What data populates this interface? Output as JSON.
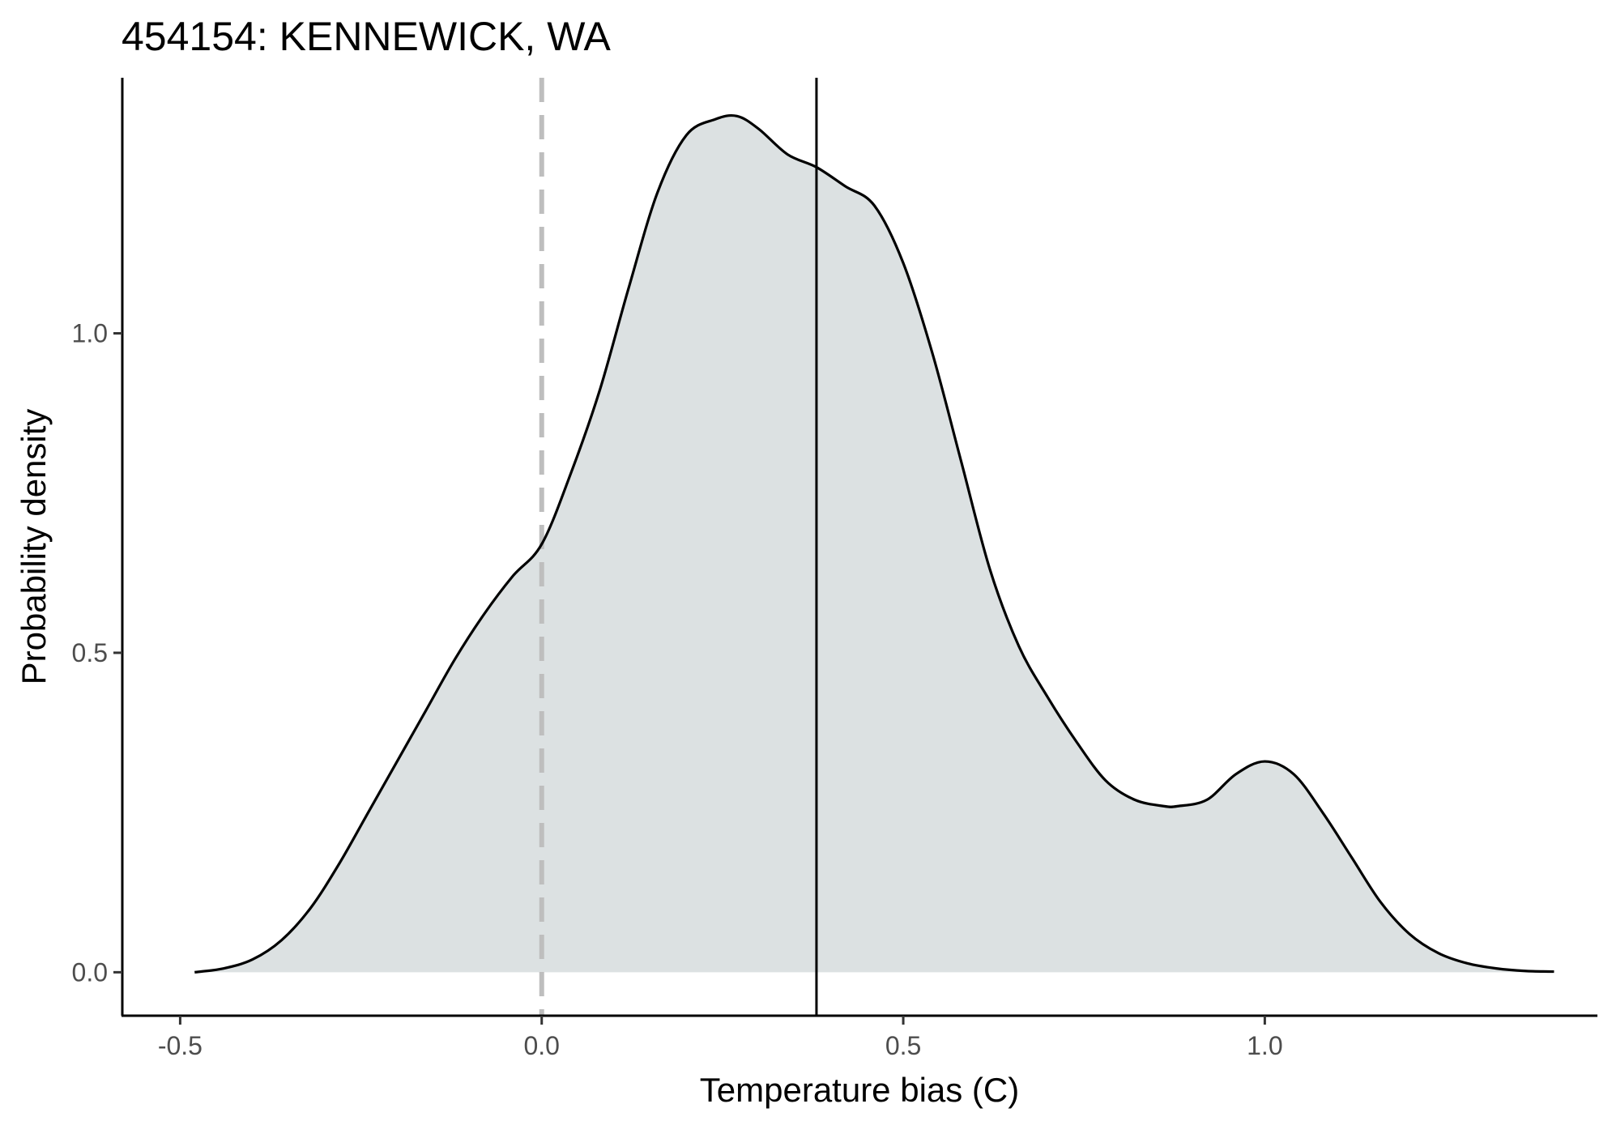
{
  "chart_data": {
    "type": "area",
    "title": "454154: KENNEWICK, WA",
    "xlabel": "Temperature bias (C)",
    "ylabel": "Probability density",
    "xlim": [
      -0.58,
      1.46
    ],
    "ylim": [
      -0.068,
      1.4
    ],
    "x_ticks": [
      {
        "value": -0.5,
        "label": "-0.5"
      },
      {
        "value": 0.0,
        "label": "0.0"
      },
      {
        "value": 0.5,
        "label": "0.5"
      },
      {
        "value": 1.0,
        "label": "1.0"
      }
    ],
    "y_ticks": [
      {
        "value": 0.0,
        "label": "0.0"
      },
      {
        "value": 0.5,
        "label": "0.5"
      },
      {
        "value": 1.0,
        "label": "1.0"
      }
    ],
    "reference_lines": [
      {
        "name": "zero-bias",
        "x": 0.0,
        "style": "dashed",
        "color": "#bebebe"
      },
      {
        "name": "mean-bias",
        "x": 0.38,
        "style": "solid",
        "color": "#000000"
      }
    ],
    "fill_color": "#dce1e2",
    "line_color": "#000000",
    "series": [
      {
        "name": "density",
        "x": [
          -0.48,
          -0.44,
          -0.4,
          -0.36,
          -0.32,
          -0.28,
          -0.24,
          -0.2,
          -0.16,
          -0.12,
          -0.08,
          -0.04,
          0.0,
          0.04,
          0.08,
          0.12,
          0.16,
          0.2,
          0.24,
          0.27,
          0.3,
          0.34,
          0.38,
          0.42,
          0.46,
          0.5,
          0.54,
          0.58,
          0.62,
          0.66,
          0.7,
          0.74,
          0.78,
          0.82,
          0.86,
          0.88,
          0.92,
          0.96,
          1.0,
          1.04,
          1.08,
          1.12,
          1.16,
          1.2,
          1.24,
          1.28,
          1.32,
          1.36,
          1.4
        ],
        "y": [
          0.0,
          0.006,
          0.02,
          0.05,
          0.1,
          0.17,
          0.25,
          0.33,
          0.41,
          0.49,
          0.56,
          0.62,
          0.67,
          0.78,
          0.91,
          1.07,
          1.22,
          1.31,
          1.335,
          1.34,
          1.32,
          1.28,
          1.26,
          1.23,
          1.2,
          1.11,
          0.97,
          0.8,
          0.63,
          0.51,
          0.43,
          0.36,
          0.3,
          0.27,
          0.26,
          0.26,
          0.27,
          0.31,
          0.33,
          0.31,
          0.25,
          0.18,
          0.11,
          0.06,
          0.03,
          0.014,
          0.006,
          0.002,
          0.001
        ]
      }
    ]
  }
}
